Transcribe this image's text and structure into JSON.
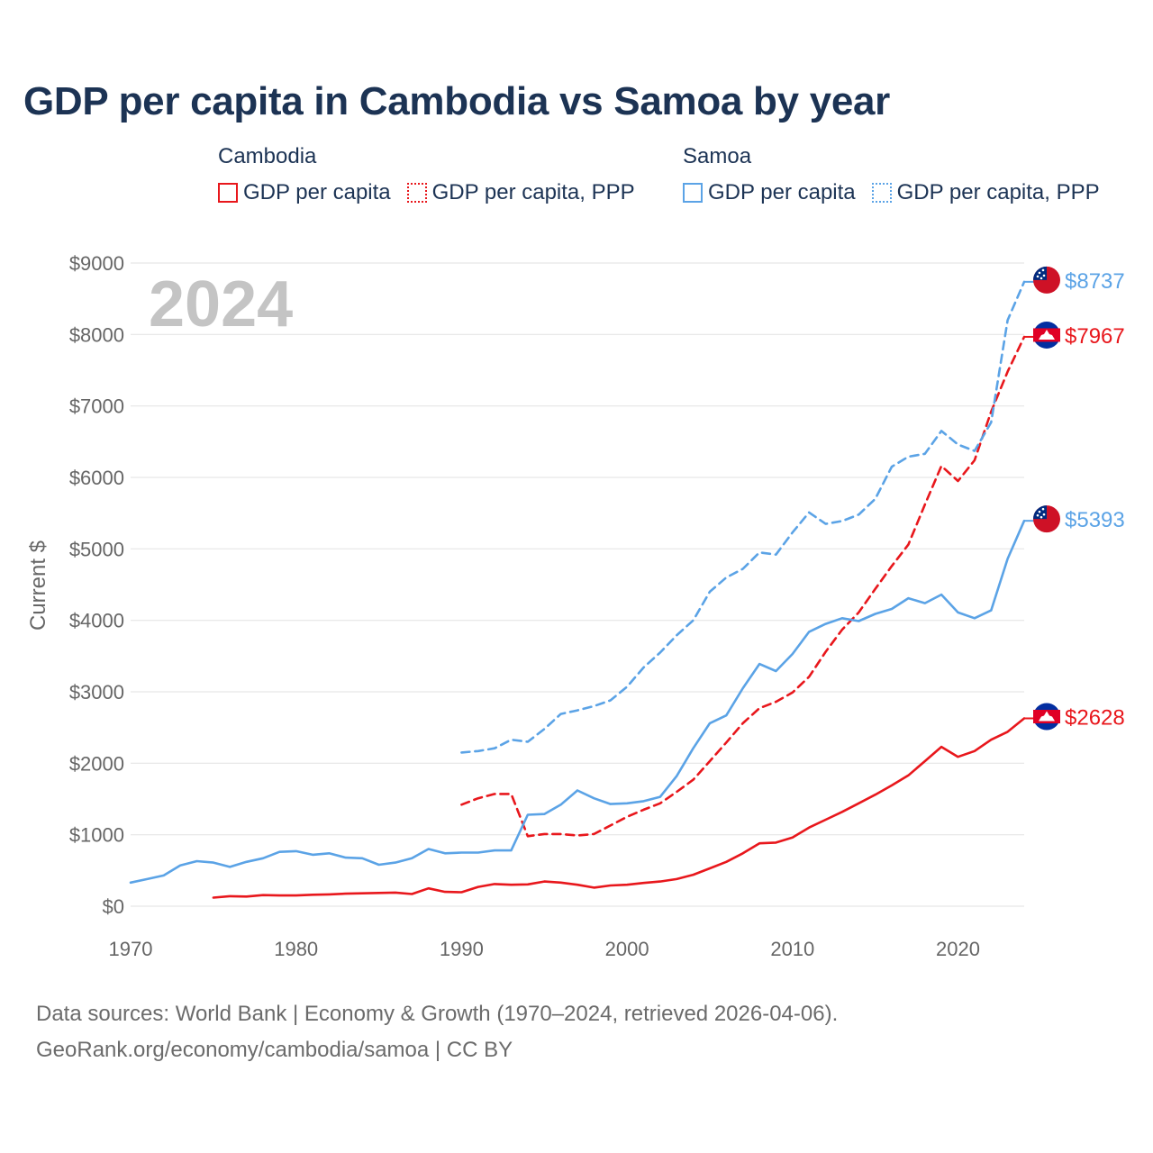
{
  "title": "GDP per capita in Cambodia vs Samoa by year",
  "legend": {
    "groups": [
      {
        "name": "Cambodia",
        "items": [
          "GDP per capita",
          "GDP per capita, PPP"
        ],
        "color": "#e8171c"
      },
      {
        "name": "Samoa",
        "items": [
          "GDP per capita",
          "GDP per capita, PPP"
        ],
        "color": "#5ba3e6"
      }
    ]
  },
  "year_watermark": "2024",
  "footer": {
    "line1": "Data sources: World Bank | Economy & Growth (1970–2024, retrieved 2026-04-06).",
    "line2": "GeoRank.org/economy/cambodia/samoa | CC BY"
  },
  "chart_data": {
    "type": "line",
    "title": "GDP per capita in Cambodia vs Samoa by year",
    "xlabel": "",
    "ylabel": "Current $",
    "xlim": [
      1970,
      2024
    ],
    "ylim": [
      0,
      9000
    ],
    "x_ticks": [
      1970,
      1980,
      1990,
      2000,
      2010,
      2020
    ],
    "y_ticks": [
      0,
      1000,
      2000,
      3000,
      4000,
      5000,
      6000,
      7000,
      8000,
      9000
    ],
    "y_tick_labels": [
      "$0",
      "$1000",
      "$2000",
      "$3000",
      "$4000",
      "$5000",
      "$6000",
      "$7000",
      "$8000",
      "$9000"
    ],
    "grid": true,
    "series": [
      {
        "name": "Cambodia GDP per capita",
        "country": "Cambodia",
        "color": "#e8171c",
        "style": "solid",
        "end_label": "$2628",
        "x": [
          1975,
          1976,
          1977,
          1978,
          1979,
          1980,
          1981,
          1982,
          1983,
          1984,
          1985,
          1986,
          1987,
          1988,
          1989,
          1990,
          1991,
          1992,
          1993,
          1994,
          1995,
          1996,
          1997,
          1998,
          1999,
          2000,
          2001,
          2002,
          2003,
          2004,
          2005,
          2006,
          2007,
          2008,
          2009,
          2010,
          2011,
          2012,
          2013,
          2014,
          2015,
          2016,
          2017,
          2018,
          2019,
          2020,
          2021,
          2022,
          2023,
          2024
        ],
        "values": [
          120,
          140,
          135,
          155,
          150,
          150,
          160,
          165,
          175,
          180,
          185,
          190,
          170,
          250,
          200,
          195,
          270,
          310,
          300,
          305,
          345,
          330,
          300,
          260,
          290,
          300,
          325,
          345,
          380,
          440,
          530,
          620,
          740,
          880,
          890,
          960,
          1100,
          1210,
          1320,
          1440,
          1560,
          1690,
          1830,
          2030,
          2230,
          2090,
          2170,
          2330,
          2440,
          2628
        ]
      },
      {
        "name": "Cambodia GDP per capita, PPP",
        "country": "Cambodia",
        "color": "#e8171c",
        "style": "dashed",
        "end_label": "$7967",
        "x": [
          1990,
          1991,
          1992,
          1993,
          1994,
          1995,
          1996,
          1997,
          1998,
          1999,
          2000,
          2001,
          2002,
          2003,
          2004,
          2005,
          2006,
          2007,
          2008,
          2009,
          2010,
          2011,
          2012,
          2013,
          2014,
          2015,
          2016,
          2017,
          2018,
          2019,
          2020,
          2021,
          2022,
          2023,
          2024
        ],
        "values": [
          1420,
          1510,
          1570,
          1570,
          980,
          1010,
          1010,
          990,
          1010,
          1130,
          1250,
          1350,
          1440,
          1600,
          1770,
          2030,
          2290,
          2560,
          2770,
          2860,
          2990,
          3210,
          3560,
          3870,
          4110,
          4440,
          4760,
          5060,
          5620,
          6160,
          5950,
          6240,
          6920,
          7480,
          7967
        ]
      },
      {
        "name": "Samoa GDP per capita",
        "country": "Samoa",
        "color": "#5ba3e6",
        "style": "solid",
        "end_label": "$5393",
        "x": [
          1970,
          1971,
          1972,
          1973,
          1974,
          1975,
          1976,
          1977,
          1978,
          1979,
          1980,
          1981,
          1982,
          1983,
          1984,
          1985,
          1986,
          1987,
          1988,
          1989,
          1990,
          1991,
          1992,
          1993,
          1994,
          1995,
          1996,
          1997,
          1998,
          1999,
          2000,
          2001,
          2002,
          2003,
          2004,
          2005,
          2006,
          2007,
          2008,
          2009,
          2010,
          2011,
          2012,
          2013,
          2014,
          2015,
          2016,
          2017,
          2018,
          2019,
          2020,
          2021,
          2022,
          2023,
          2024
        ],
        "values": [
          330,
          380,
          430,
          570,
          630,
          610,
          550,
          620,
          670,
          760,
          770,
          720,
          740,
          680,
          670,
          580,
          610,
          670,
          800,
          740,
          750,
          750,
          780,
          780,
          1280,
          1290,
          1420,
          1620,
          1510,
          1430,
          1440,
          1470,
          1530,
          1820,
          2210,
          2560,
          2670,
          3050,
          3390,
          3290,
          3530,
          3840,
          3950,
          4030,
          3990,
          4090,
          4160,
          4310,
          4240,
          4360,
          4110,
          4030,
          4140,
          4860,
          5393
        ]
      },
      {
        "name": "Samoa GDP per capita, PPP",
        "country": "Samoa",
        "color": "#5ba3e6",
        "style": "dashed",
        "end_label": "$8737",
        "x": [
          1990,
          1991,
          1992,
          1993,
          1994,
          1995,
          1996,
          1997,
          1998,
          1999,
          2000,
          2001,
          2002,
          2003,
          2004,
          2005,
          2006,
          2007,
          2008,
          2009,
          2010,
          2011,
          2012,
          2013,
          2014,
          2015,
          2016,
          2017,
          2018,
          2019,
          2020,
          2021,
          2022,
          2023,
          2024
        ],
        "values": [
          2150,
          2170,
          2210,
          2330,
          2300,
          2480,
          2690,
          2740,
          2800,
          2880,
          3070,
          3340,
          3550,
          3790,
          4000,
          4400,
          4600,
          4720,
          4950,
          4920,
          5230,
          5510,
          5350,
          5390,
          5480,
          5700,
          6150,
          6290,
          6330,
          6650,
          6460,
          6370,
          6770,
          8200,
          8737
        ]
      }
    ]
  }
}
